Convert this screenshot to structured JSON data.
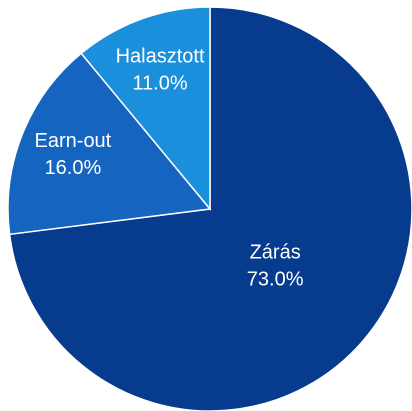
{
  "chart_data": {
    "type": "pie",
    "categories": [
      "Zárás",
      "Earn-out",
      "Halasztott"
    ],
    "values": [
      73,
      16,
      11
    ],
    "value_labels": [
      "73.0%",
      "16.0%",
      "11.0%"
    ],
    "colors": [
      "#063b8e",
      "#1565c0",
      "#1a8fdc"
    ],
    "start_angle": 90,
    "direction": "clockwise"
  }
}
